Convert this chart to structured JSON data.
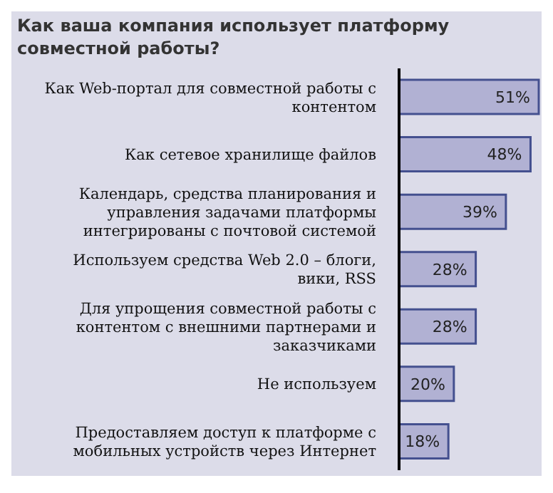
{
  "chart_data": {
    "type": "bar",
    "orientation": "horizontal",
    "title": "Как ваша компания использует платформу совместной работы?",
    "categories": [
      "Как Web-портал для совместной работы с контентом",
      "Как сетевое хранилище файлов",
      "Календарь, средства планирования и управления задачами платформы интегрированы с почтовой системой",
      "Используем средства Web 2.0 – блоги, вики, RSS",
      "Для упрощения совместной работы с контентом с внешними партнерами и заказчиками",
      "Не используем",
      "Предоставляем доступ к платформе с мобильных устройств через Интернет"
    ],
    "values": [
      51,
      48,
      39,
      28,
      28,
      20,
      18
    ],
    "color": "#b1b1d3",
    "value_labels": [
      "51%",
      "48%",
      "39%",
      "28%",
      "28%",
      "20%",
      "18%"
    ]
  }
}
